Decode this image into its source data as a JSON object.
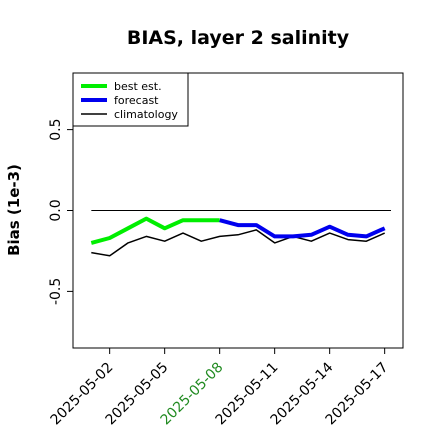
{
  "chart_data": {
    "type": "line",
    "title": "BIAS, layer 2 salinity",
    "ylabel": "Bias (1e-3)",
    "xlabel": "",
    "ylim": [
      -0.85,
      0.85
    ],
    "yticks": [
      -0.5,
      0.0,
      0.5
    ],
    "ytick_labels": [
      "-0.5",
      "0.0",
      "0.5"
    ],
    "xlim_days": [
      "2025-04-30",
      "2025-05-18"
    ],
    "xticks": [
      {
        "date": "2025-05-02",
        "label": "2025-05-02",
        "color": "#000000"
      },
      {
        "date": "2025-05-05",
        "label": "2025-05-05",
        "color": "#000000"
      },
      {
        "date": "2025-05-08",
        "label": "2025-05-08",
        "color": "#228B22"
      },
      {
        "date": "2025-05-11",
        "label": "2025-05-11",
        "color": "#000000"
      },
      {
        "date": "2025-05-14",
        "label": "2025-05-14",
        "color": "#000000"
      },
      {
        "date": "2025-05-17",
        "label": "2025-05-17",
        "color": "#000000"
      }
    ],
    "hline": 0.0,
    "hline_from": "2025-05-01",
    "series": [
      {
        "name": "best est.",
        "color": "#00ee00",
        "dates": [
          "2025-05-01",
          "2025-05-02",
          "2025-05-03",
          "2025-05-04",
          "2025-05-05",
          "2025-05-06",
          "2025-05-07",
          "2025-05-08"
        ],
        "values": [
          -0.2,
          -0.17,
          -0.11,
          -0.05,
          -0.11,
          -0.06,
          -0.06,
          -0.06
        ]
      },
      {
        "name": "forecast",
        "color": "#0000ee",
        "dates": [
          "2025-05-08",
          "2025-05-09",
          "2025-05-10",
          "2025-05-11",
          "2025-05-12",
          "2025-05-13",
          "2025-05-14",
          "2025-05-15",
          "2025-05-16",
          "2025-05-17"
        ],
        "values": [
          -0.06,
          -0.09,
          -0.09,
          -0.16,
          -0.16,
          -0.15,
          -0.1,
          -0.15,
          -0.16,
          -0.11
        ]
      },
      {
        "name": "climatology",
        "color": "#000000",
        "dates": [
          "2025-05-01",
          "2025-05-02",
          "2025-05-03",
          "2025-05-04",
          "2025-05-05",
          "2025-05-06",
          "2025-05-07",
          "2025-05-08",
          "2025-05-09",
          "2025-05-10",
          "2025-05-11",
          "2025-05-12",
          "2025-05-13",
          "2025-05-14",
          "2025-05-15",
          "2025-05-16",
          "2025-05-17"
        ],
        "values": [
          -0.26,
          -0.28,
          -0.2,
          -0.16,
          -0.19,
          -0.14,
          -0.19,
          -0.16,
          -0.15,
          -0.12,
          -0.2,
          -0.16,
          -0.19,
          -0.14,
          -0.18,
          -0.19,
          -0.14
        ]
      }
    ],
    "legend": {
      "placement": "top-left",
      "entries": [
        "best est.",
        "forecast",
        "climatology"
      ]
    },
    "grid": false
  }
}
